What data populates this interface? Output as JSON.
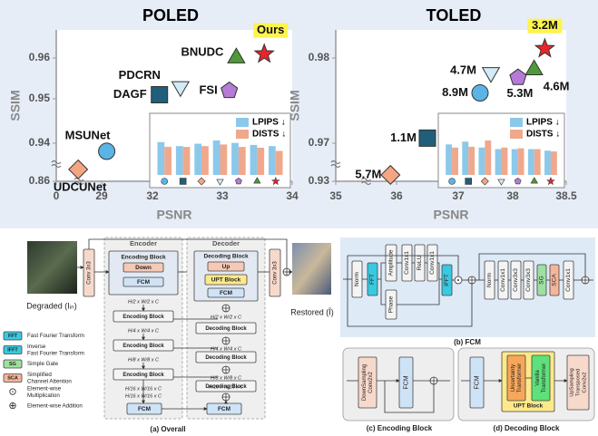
{
  "chart_data": [
    {
      "type": "scatter",
      "title": "POLED",
      "xlabel": "PSNR",
      "ylabel": "SSIM",
      "xlim": [
        0,
        34
      ],
      "ylim": [
        0.86,
        0.967
      ],
      "xticks": [
        0,
        29,
        32,
        33,
        34
      ],
      "yticks": [
        0.86,
        0.94,
        0.95,
        0.96
      ],
      "labels": [
        "UDCUNet",
        "MSUNet",
        "DAGF",
        "PDCRN",
        "FSI",
        "BNUDC",
        "Ours"
      ],
      "x": [
        14,
        29.3,
        32.1,
        32.4,
        33.1,
        33.2,
        33.6
      ],
      "values": [
        0.885,
        0.923,
        0.951,
        0.953,
        0.952,
        0.96,
        0.961
      ],
      "markers": [
        "diamond",
        "circle",
        "square",
        "triangle-down",
        "pentagon",
        "triangle",
        "star"
      ],
      "colors": [
        "#f4a582",
        "#5bb3e6",
        "#1f5f7a",
        "#d3ebf7",
        "#b57bd6",
        "#4e9a3a",
        "#e8262a"
      ],
      "highlighted": [
        false,
        false,
        false,
        false,
        false,
        false,
        true
      ],
      "highlight_color": "#fff34d",
      "inset": {
        "type": "bar",
        "series": [
          {
            "name": "LPIPS ↓",
            "color": "#8cc8ea",
            "values": [
              0.82,
              0.72,
              0.78,
              0.86,
              0.8,
              0.75,
              0.72
            ]
          },
          {
            "name": "DISTS ↓",
            "color": "#f0a88c",
            "values": [
              0.7,
              0.7,
              0.72,
              0.76,
              0.7,
              0.68,
              0.6
            ]
          }
        ],
        "markers": [
          "circle",
          "square",
          "diamond",
          "triangle-down",
          "pentagon",
          "triangle",
          "star"
        ],
        "colors": [
          "#5bb3e6",
          "#1f5f7a",
          "#f4a582",
          "#d3ebf7",
          "#b57bd6",
          "#4e9a3a",
          "#e8262a"
        ]
      }
    },
    {
      "type": "scatter",
      "title": "TOLED",
      "xlabel": "PSNR",
      "ylabel": "SSIM",
      "xlim": [
        35,
        38.5
      ],
      "ylim": [
        0.93,
        0.983
      ],
      "xticks": [
        35,
        36,
        37,
        38,
        38.5
      ],
      "yticks": [
        0.93,
        0.97,
        0.98
      ],
      "labels": [
        "5.7M",
        "1.1M",
        "8.9M",
        "4.7M",
        "5.3M",
        "4.6M",
        "3.2M"
      ],
      "x": [
        35.9,
        36.5,
        37.4,
        37.6,
        38.05,
        38.2,
        38.3
      ],
      "values": [
        0.9367,
        0.9706,
        0.9759,
        0.9783,
        0.9777,
        0.9786,
        0.981
      ],
      "markers": [
        "diamond",
        "square",
        "circle",
        "triangle-down",
        "pentagon",
        "triangle",
        "star"
      ],
      "colors": [
        "#f4a582",
        "#1f5f7a",
        "#5bb3e6",
        "#d3ebf7",
        "#b57bd6",
        "#4e9a3a",
        "#e8262a"
      ],
      "highlighted": [
        false,
        false,
        false,
        false,
        false,
        false,
        true
      ],
      "highlight_color": "#fff34d",
      "inset": {
        "type": "bar",
        "series": [
          {
            "name": "LPIPS ↓",
            "color": "#8cc8ea",
            "values": [
              0.78,
              0.85,
              0.7,
              0.66,
              0.66,
              0.66,
              0.62
            ]
          },
          {
            "name": "DISTS ↓",
            "color": "#f0a88c",
            "values": [
              0.7,
              0.72,
              0.88,
              0.7,
              0.68,
              0.66,
              0.6
            ]
          }
        ],
        "markers": [
          "circle",
          "square",
          "diamond",
          "triangle-down",
          "pentagon",
          "triangle",
          "star"
        ],
        "colors": [
          "#5bb3e6",
          "#1f5f7a",
          "#f4a582",
          "#d3ebf7",
          "#b57bd6",
          "#4e9a3a",
          "#e8262a"
        ]
      }
    }
  ],
  "diagram": {
    "overall": {
      "input": "Degraded (Iᵢₙ)",
      "output": "Restored (Î)",
      "encoder": "Encoder",
      "decoder": "Decoder",
      "conv": "Conv 3x3",
      "enc_block": "Encoding Block",
      "down": "Down",
      "fcm": "FCM",
      "dec_block": "Decoding Block",
      "up": "Up",
      "upt": "UPT Block",
      "sizes": [
        "H/2 x W/2 x C",
        "H/4 x W/4 x C",
        "H/8 x W/8 x C",
        "H/16 x W/16 x C"
      ],
      "caption": "(a) Overall"
    },
    "legend": [
      {
        "key": "FFT",
        "text": [
          "Fast Fourier Transform"
        ]
      },
      {
        "key": "IFFT",
        "text": [
          "Inverse",
          "Fast Fourier Transform"
        ]
      },
      {
        "key": "SG",
        "text": [
          "Simple Gate"
        ]
      },
      {
        "key": "SCA",
        "text": [
          "Simplified",
          "Channel Attention"
        ]
      },
      {
        "key": "⊙",
        "text": [
          "Element-wise",
          "Multiplication"
        ]
      },
      {
        "key": "⊕",
        "text": [
          "Element-wise Addition"
        ]
      }
    ],
    "fcm": {
      "norm": "Norm",
      "fft": "FFT",
      "amplitude": "Amplitude",
      "phase": "Phase",
      "conv1": "Conv1x1",
      "relu": "ReLU",
      "ifft": "IFFT",
      "conv3": "Conv3x3",
      "sg": "SG",
      "sca": "SCA",
      "caption": "(b) FCM"
    },
    "encoding": {
      "down": [
        "DownSampling",
        "Conv2x2"
      ],
      "fcm": "FCM",
      "caption": "(c) Encoding Block"
    },
    "decoding": {
      "fcm": "FCM",
      "uncertainty": [
        "Uncertainty",
        "Transformer"
      ],
      "vanilla": [
        "Vanilla",
        "Transformer"
      ],
      "upt": "UPT Block",
      "up": [
        "UpSampling",
        "Transposed",
        "Conv2x2"
      ],
      "caption": "(d) Decoding Block"
    }
  }
}
